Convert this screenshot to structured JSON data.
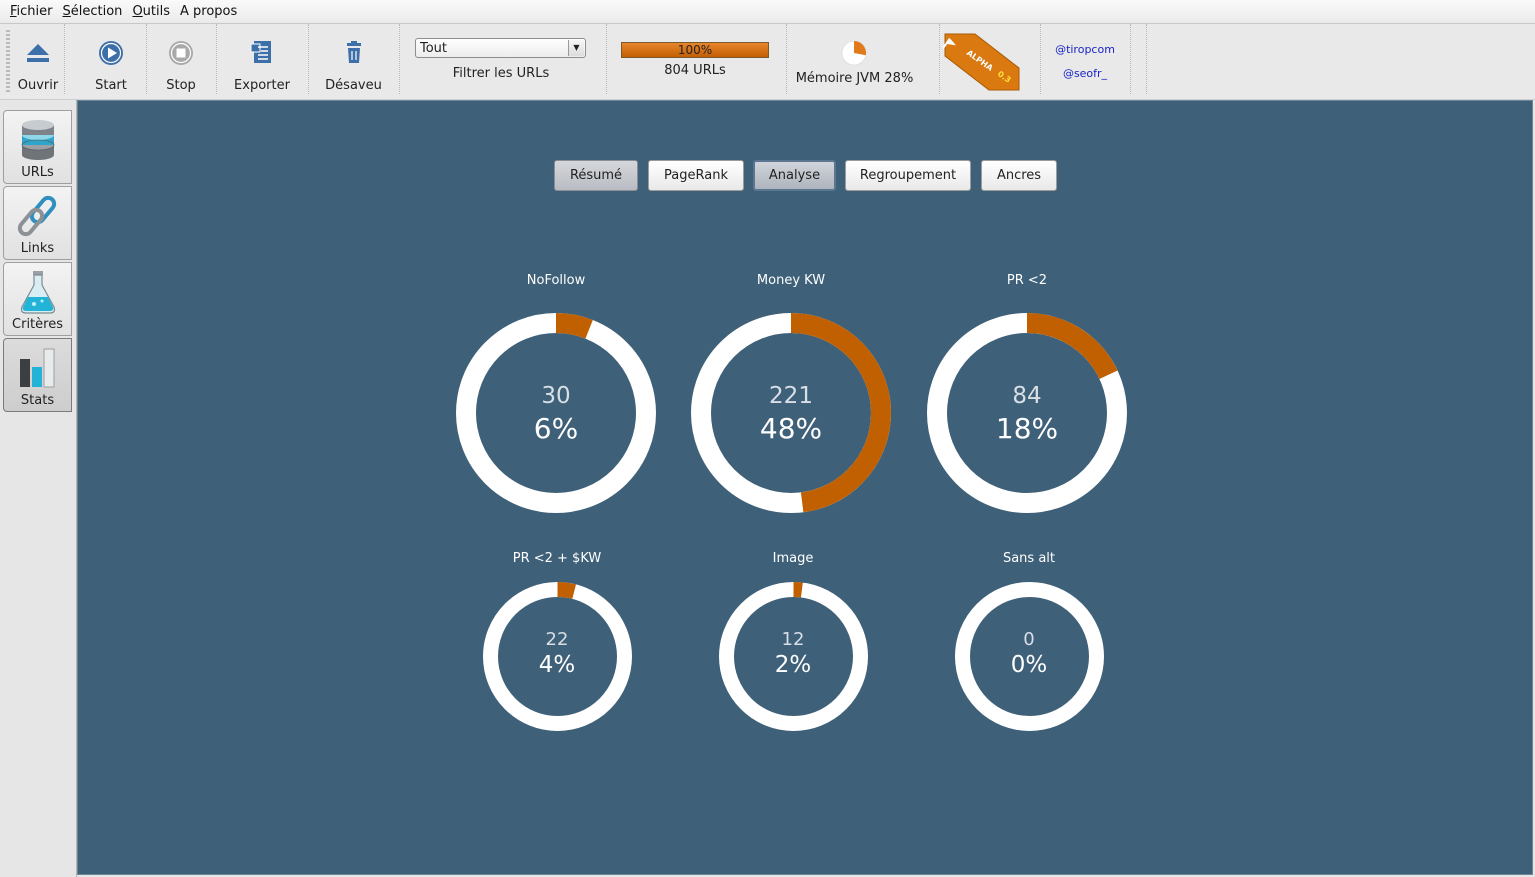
{
  "menu": [
    {
      "mnemonic": "F",
      "rest": "ichier"
    },
    {
      "mnemonic": "S",
      "rest": "élection"
    },
    {
      "mnemonic": "O",
      "rest": "utils"
    },
    {
      "mnemonic": "",
      "rest": "A propos"
    }
  ],
  "toolbar": {
    "open_label": "Ouvrir",
    "start_label": "Start",
    "stop_label": "Stop",
    "export_label": "Exporter",
    "disavow_label": "Désaveu",
    "filter_value": "Tout",
    "filter_label": "Filtrer les URLs",
    "progress_text": "100%",
    "progress_value": 100,
    "urls_label": "804 URLs",
    "memory_label": "Mémoire JVM 28%",
    "memory_fraction": 0.28,
    "badge_text": "ALPHA",
    "badge_version": "0.3",
    "link_1": "@tiropcom",
    "link_2": "@seofr_"
  },
  "sidebar": [
    {
      "label": "URLs",
      "icon": "database-icon"
    },
    {
      "label": "Links",
      "icon": "chain-link-icon"
    },
    {
      "label": "Critères",
      "icon": "flask-icon"
    },
    {
      "label": "Stats",
      "icon": "bar-chart-icon"
    }
  ],
  "tabs": [
    "Résumé",
    "PageRank",
    "Analyse",
    "Regroupement",
    "Ancres"
  ],
  "active_tab": "Analyse",
  "colors": {
    "accent": "#c06000",
    "panel": "#3e6078",
    "ring": "#ffffff"
  },
  "chart_data": [
    {
      "type": "pie",
      "title": "NoFollow",
      "count": "30",
      "percent_label": "6%",
      "value": 6
    },
    {
      "type": "pie",
      "title": "Money KW",
      "count": "221",
      "percent_label": "48%",
      "value": 48
    },
    {
      "type": "pie",
      "title": "PR <2",
      "count": "84",
      "percent_label": "18%",
      "value": 18
    },
    {
      "type": "pie",
      "title": "PR <2 + $KW",
      "count": "22",
      "percent_label": "4%",
      "value": 4
    },
    {
      "type": "pie",
      "title": "Image",
      "count": "12",
      "percent_label": "2%",
      "value": 2
    },
    {
      "type": "pie",
      "title": "Sans alt",
      "count": "0",
      "percent_label": "0%",
      "value": 0
    }
  ]
}
